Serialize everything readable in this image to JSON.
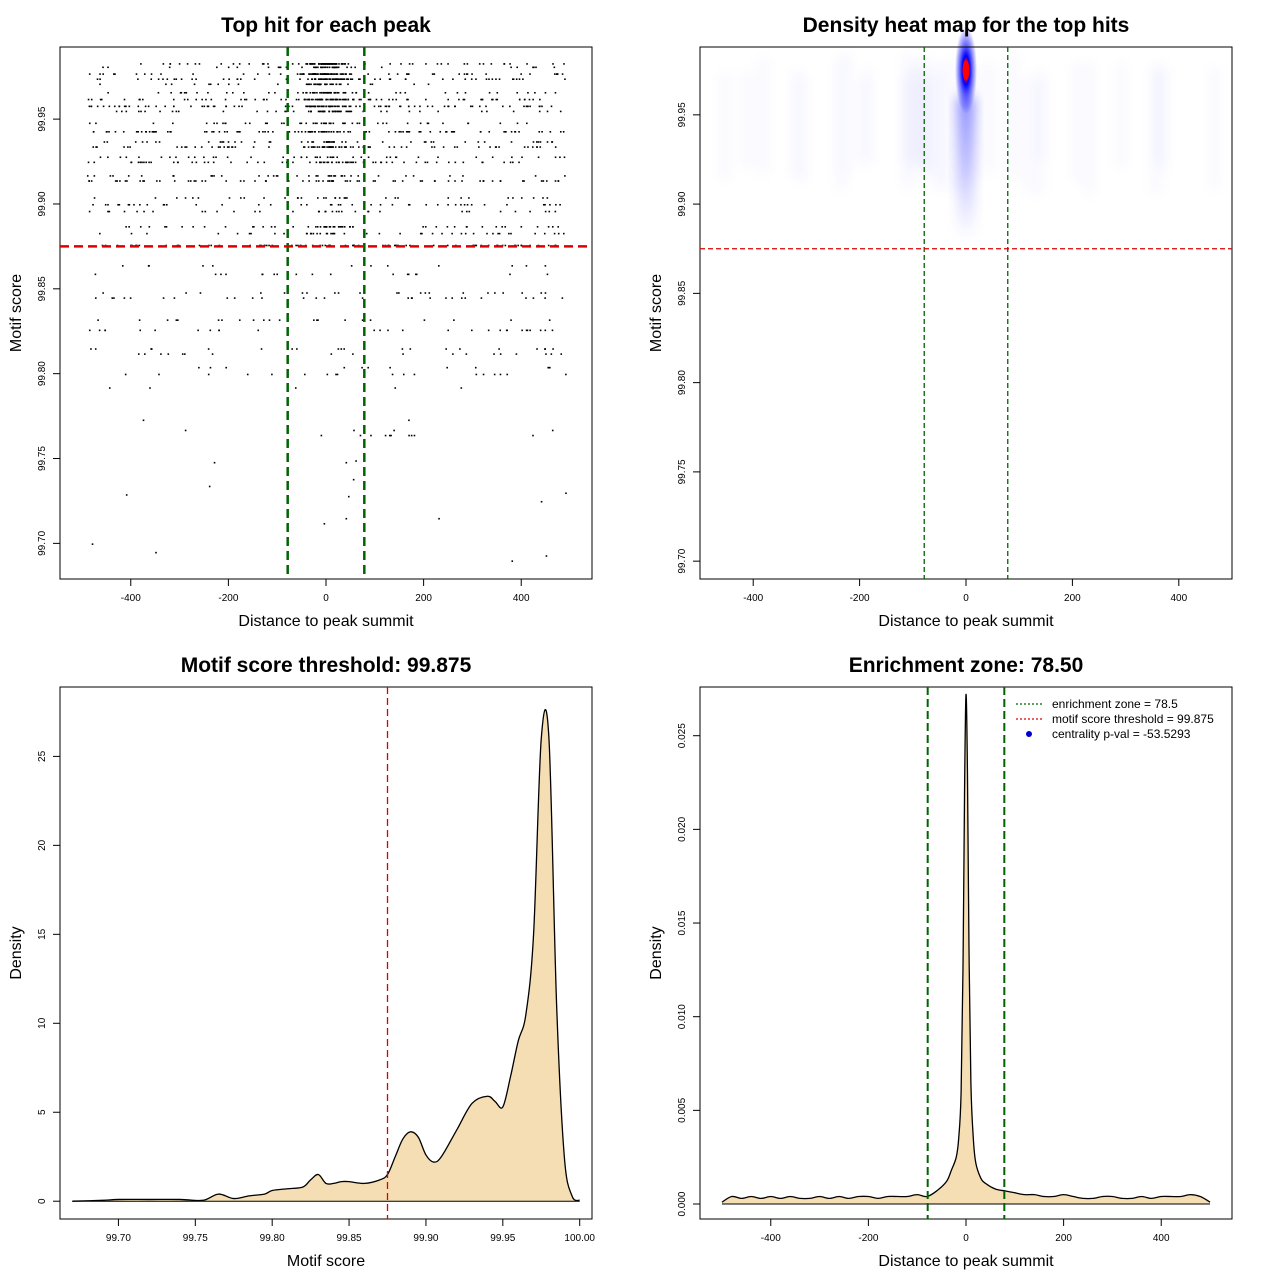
{
  "chart_data": [
    {
      "id": "p1",
      "type": "scatter",
      "title": "Top hit for each peak",
      "xlabel": "Distance to peak summit",
      "ylabel": "Motif score",
      "xlim": [
        -545,
        545
      ],
      "ylim": [
        99.679,
        99.9925
      ],
      "xticks": [
        -400,
        -200,
        0,
        200,
        400
      ],
      "xtick_labels": [
        "-400",
        "-200",
        "0",
        "200",
        "400"
      ],
      "yticks": [
        99.7,
        99.75,
        99.8,
        99.85,
        99.9,
        99.95
      ],
      "ytick_labels": [
        "99.70",
        "99.75",
        "99.80",
        "99.85",
        "99.90",
        "99.95"
      ],
      "hlines": [
        {
          "y": 99.875,
          "color": "#dd0000",
          "style": "dashed"
        }
      ],
      "vlines": [
        {
          "x": -78.5,
          "color": "#006400",
          "style": "dashed"
        },
        {
          "x": 78.5,
          "color": "#006400",
          "style": "dashed"
        }
      ],
      "point_color": "#000000",
      "score_levels": [
        {
          "y": 99.983,
          "n": 40,
          "center": 55
        },
        {
          "y": 99.981,
          "n": 18,
          "center": 30
        },
        {
          "y": 99.977,
          "n": 40,
          "center": 55
        },
        {
          "y": 99.974,
          "n": 45,
          "center": 50
        },
        {
          "y": 99.971,
          "n": 18,
          "center": 30
        },
        {
          "y": 99.966,
          "n": 30,
          "center": 40
        },
        {
          "y": 99.962,
          "n": 70,
          "center": 35
        },
        {
          "y": 99.958,
          "n": 80,
          "center": 35
        },
        {
          "y": 99.955,
          "n": 30,
          "center": 30
        },
        {
          "y": 99.948,
          "n": 35,
          "center": 15
        },
        {
          "y": 99.943,
          "n": 80,
          "center": 25
        },
        {
          "y": 99.937,
          "n": 40,
          "center": 12
        },
        {
          "y": 99.934,
          "n": 60,
          "center": 25
        },
        {
          "y": 99.928,
          "n": 35,
          "center": 10
        },
        {
          "y": 99.925,
          "n": 55,
          "center": 15
        },
        {
          "y": 99.917,
          "n": 30,
          "center": 8
        },
        {
          "y": 99.914,
          "n": 60,
          "center": 10
        },
        {
          "y": 99.904,
          "n": 30,
          "center": 5
        },
        {
          "y": 99.9,
          "n": 40,
          "center": 5
        },
        {
          "y": 99.896,
          "n": 30,
          "center": 5
        },
        {
          "y": 99.887,
          "n": 40,
          "center": 15
        },
        {
          "y": 99.883,
          "n": 35,
          "center": 10
        },
        {
          "y": 99.876,
          "n": 70,
          "center": 5
        },
        {
          "y": 99.864,
          "n": 12,
          "center": 0
        },
        {
          "y": 99.859,
          "n": 18,
          "center": 0
        },
        {
          "y": 99.848,
          "n": 22,
          "center": 0
        },
        {
          "y": 99.845,
          "n": 28,
          "center": 0
        },
        {
          "y": 99.832,
          "n": 22,
          "center": 0
        },
        {
          "y": 99.826,
          "n": 28,
          "center": 0
        },
        {
          "y": 99.815,
          "n": 20,
          "center": 0
        },
        {
          "y": 99.812,
          "n": 18,
          "center": 0
        },
        {
          "y": 99.804,
          "n": 12,
          "center": 0
        },
        {
          "y": 99.8,
          "n": 18,
          "center": 0
        },
        {
          "y": 99.792,
          "n": 5,
          "center": 0
        },
        {
          "y": 99.773,
          "n": 2,
          "center": 0
        },
        {
          "y": 99.767,
          "n": 4,
          "center": 0
        },
        {
          "y": 99.764,
          "n": 10,
          "center": 0
        }
      ],
      "sparse_points": [
        {
          "x": -480,
          "y": 99.7
        },
        {
          "x": -350,
          "y": 99.695
        },
        {
          "x": 380,
          "y": 99.69
        },
        {
          "x": 450,
          "y": 99.693
        },
        {
          "x": 230,
          "y": 99.715
        },
        {
          "x": 40,
          "y": 99.715
        },
        {
          "x": -5,
          "y": 99.712
        },
        {
          "x": -410,
          "y": 99.729
        },
        {
          "x": 490,
          "y": 99.73
        },
        {
          "x": 440,
          "y": 99.725
        },
        {
          "x": 45,
          "y": 99.728
        },
        {
          "x": -240,
          "y": 99.734
        },
        {
          "x": 55,
          "y": 99.738
        },
        {
          "x": -230,
          "y": 99.748
        },
        {
          "x": 40,
          "y": 99.748
        },
        {
          "x": 60,
          "y": 99.749
        }
      ]
    },
    {
      "id": "p2",
      "type": "heatmap",
      "title": "Density heat map for the top hits",
      "xlabel": "Distance to peak summit",
      "ylabel": "Motif score",
      "xlim": [
        -500,
        500
      ],
      "ylim": [
        99.69,
        99.988
      ],
      "xticks": [
        -400,
        -200,
        0,
        200,
        400
      ],
      "xtick_labels": [
        "-400",
        "-200",
        "0",
        "200",
        "400"
      ],
      "yticks": [
        99.7,
        99.75,
        99.8,
        99.85,
        99.9,
        99.95
      ],
      "ytick_labels": [
        "99.70",
        "99.75",
        "99.80",
        "99.85",
        "99.90",
        "99.95"
      ],
      "hlines": [
        {
          "y": 99.875,
          "color": "#dd0000",
          "style": "dashed"
        }
      ],
      "vlines": [
        {
          "x": -78.5,
          "color": "#006400",
          "style": "dashed"
        },
        {
          "x": 78.5,
          "color": "#006400",
          "style": "dashed"
        }
      ],
      "hotspot": {
        "x": 0,
        "y": 99.975,
        "color": "#ff0000"
      },
      "low_color": "#ffffff",
      "mid_color": "#0000ff"
    },
    {
      "id": "p3",
      "type": "area",
      "title": "Motif score threshold: 99.875",
      "xlabel": "Motif score",
      "ylabel": "Density",
      "xlim": [
        99.662,
        100.008
      ],
      "ylim": [
        -1.0,
        28.9
      ],
      "xticks": [
        99.7,
        99.75,
        99.8,
        99.85,
        99.9,
        99.95,
        100.0
      ],
      "xtick_labels": [
        "99.70",
        "99.75",
        "99.80",
        "99.85",
        "99.90",
        "99.95",
        "100.00"
      ],
      "yticks": [
        0,
        5,
        10,
        15,
        20,
        25
      ],
      "ytick_labels": [
        "0",
        "5",
        "10",
        "15",
        "20",
        "25"
      ],
      "vlines": [
        {
          "x": 99.875,
          "color": "#dd0000",
          "style": "dashed"
        }
      ],
      "fill_color": "#f5deb3",
      "x": [
        99.67,
        99.69,
        99.7,
        99.72,
        99.74,
        99.755,
        99.765,
        99.775,
        99.785,
        99.795,
        99.8,
        99.81,
        99.82,
        99.825,
        99.83,
        99.835,
        99.84,
        99.845,
        99.85,
        99.86,
        99.87,
        99.875,
        99.88,
        99.885,
        99.89,
        99.895,
        99.9,
        99.905,
        99.91,
        99.92,
        99.93,
        99.94,
        99.945,
        99.95,
        99.955,
        99.96,
        99.965,
        99.97,
        99.975,
        99.98,
        99.985,
        99.99,
        99.995,
        100.0
      ],
      "values": [
        0.0,
        0.05,
        0.1,
        0.1,
        0.1,
        0.05,
        0.4,
        0.15,
        0.3,
        0.4,
        0.6,
        0.7,
        0.8,
        1.2,
        1.5,
        1.0,
        1.0,
        1.1,
        1.1,
        1.0,
        1.2,
        1.5,
        2.5,
        3.5,
        3.9,
        3.6,
        2.6,
        2.2,
        2.5,
        4.0,
        5.5,
        5.9,
        5.6,
        5.3,
        7.0,
        9.0,
        10.5,
        15.0,
        26.0,
        26.0,
        11.0,
        2.5,
        0.3,
        0.05
      ]
    },
    {
      "id": "p4",
      "type": "area",
      "title": "Enrichment zone: 78.50",
      "xlabel": "Distance to peak summit",
      "ylabel": "Density",
      "xlim": [
        -545,
        545
      ],
      "ylim": [
        -0.0008,
        0.0276
      ],
      "xticks": [
        -400,
        -200,
        0,
        200,
        400
      ],
      "xtick_labels": [
        "-400",
        "-200",
        "0",
        "200",
        "400"
      ],
      "yticks": [
        0.0,
        0.005,
        0.01,
        0.015,
        0.02,
        0.025
      ],
      "ytick_labels": [
        "0.000",
        "0.005",
        "0.010",
        "0.015",
        "0.020",
        "0.025"
      ],
      "vlines": [
        {
          "x": -78.5,
          "color": "#006400",
          "style": "dashed"
        },
        {
          "x": 78.5,
          "color": "#006400",
          "style": "dashed"
        }
      ],
      "fill_color": "#f5deb3",
      "x": [
        -500,
        -480,
        -460,
        -440,
        -420,
        -400,
        -380,
        -360,
        -340,
        -320,
        -300,
        -280,
        -260,
        -240,
        -220,
        -200,
        -180,
        -160,
        -140,
        -120,
        -100,
        -80,
        -60,
        -40,
        -30,
        -20,
        -15,
        -10,
        -6,
        -3,
        0,
        3,
        6,
        10,
        15,
        20,
        30,
        40,
        60,
        80,
        100,
        120,
        140,
        160,
        180,
        200,
        220,
        240,
        260,
        280,
        300,
        320,
        340,
        360,
        380,
        400,
        420,
        440,
        460,
        480,
        500
      ],
      "values": [
        0.0001,
        0.0004,
        0.0003,
        0.0004,
        0.0003,
        0.0004,
        0.0003,
        0.0004,
        0.0003,
        0.0003,
        0.0004,
        0.0003,
        0.0004,
        0.0003,
        0.0004,
        0.0004,
        0.0003,
        0.0004,
        0.0004,
        0.0004,
        0.0005,
        0.0004,
        0.0007,
        0.0012,
        0.0018,
        0.0025,
        0.0035,
        0.006,
        0.013,
        0.022,
        0.0272,
        0.023,
        0.014,
        0.0065,
        0.0035,
        0.0022,
        0.0014,
        0.0011,
        0.0008,
        0.0007,
        0.0006,
        0.0005,
        0.0005,
        0.0004,
        0.0004,
        0.0005,
        0.0004,
        0.0003,
        0.0003,
        0.0004,
        0.0004,
        0.0003,
        0.0003,
        0.0004,
        0.0003,
        0.0004,
        0.0004,
        0.0004,
        0.0005,
        0.0004,
        0.0001
      ],
      "legend": [
        {
          "label": "enrichment zone = 78.5",
          "type": "line",
          "color": "#006400"
        },
        {
          "label": "motif score threshold = 99.875",
          "type": "line",
          "color": "#dd0000"
        },
        {
          "label": "centrality p-val = -53.5293",
          "type": "point",
          "color": "#0000cc"
        }
      ]
    }
  ]
}
